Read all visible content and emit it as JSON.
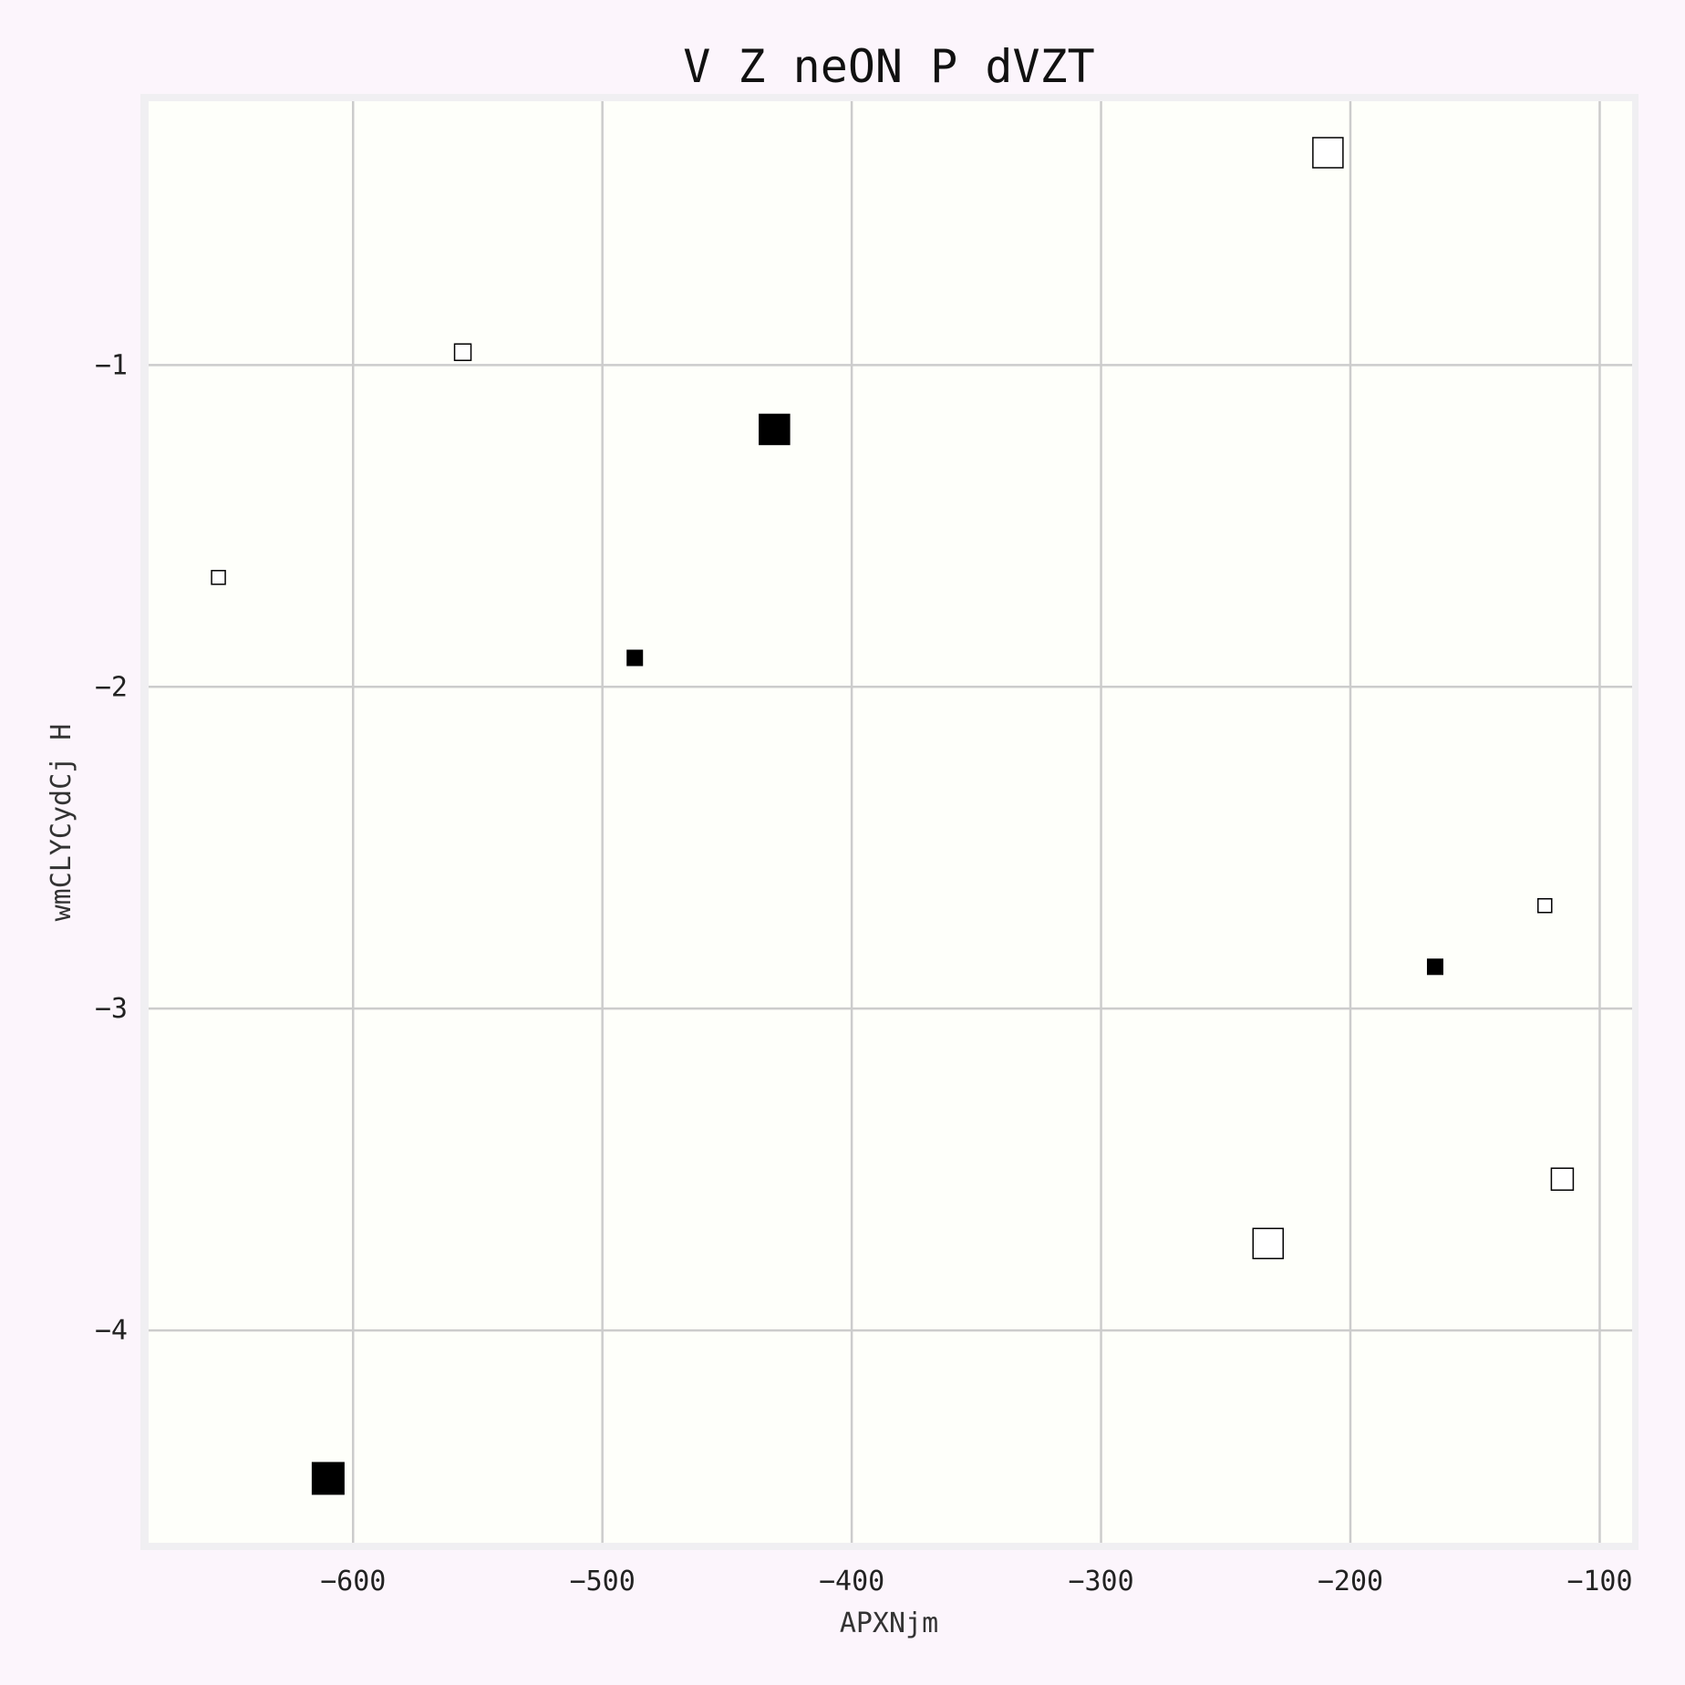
{
  "chart_data": {
    "type": "scatter",
    "title": "V Z  neON P dVZT",
    "xlabel": "APXNjm",
    "ylabel": "wmCLYCydCj H",
    "xlim": [
      -682,
      -87
    ],
    "ylim": [
      -4.66,
      -0.18
    ],
    "xticks": [
      -600,
      -500,
      -400,
      -300,
      -200,
      -100
    ],
    "yticks": [
      -1,
      -2,
      -3,
      -4
    ],
    "x_tick_labels": [
      "−600",
      "−500",
      "−400",
      "−300",
      "−200",
      "−100"
    ],
    "y_tick_labels": [
      "−1",
      "−2",
      "−3",
      "−4"
    ],
    "grid": true,
    "colors": {
      "page_background": "#fcf5fc",
      "frame": "#f0eff2",
      "plot_background": "#fefffa",
      "grid": "#cccccc",
      "filled_marker": "#000000",
      "hollow_marker_edge": "#000000",
      "hollow_marker_fill": "#ffffff"
    },
    "marker_shape": "square",
    "points": [
      {
        "x": -654,
        "y": -1.66,
        "size": 1,
        "filled": false
      },
      {
        "x": -556,
        "y": -0.96,
        "size": 1.2,
        "filled": false
      },
      {
        "x": -487,
        "y": -1.91,
        "size": 1.1,
        "filled": true
      },
      {
        "x": -431,
        "y": -1.2,
        "size": 2.2,
        "filled": true
      },
      {
        "x": -610,
        "y": -4.46,
        "size": 2.3,
        "filled": true
      },
      {
        "x": -209,
        "y": -0.34,
        "size": 2.2,
        "filled": false
      },
      {
        "x": -233,
        "y": -3.73,
        "size": 2.2,
        "filled": false
      },
      {
        "x": -166,
        "y": -2.87,
        "size": 1.1,
        "filled": true
      },
      {
        "x": -122,
        "y": -2.68,
        "size": 1,
        "filled": false
      },
      {
        "x": -115,
        "y": -3.53,
        "size": 1.6,
        "filled": false
      }
    ]
  }
}
